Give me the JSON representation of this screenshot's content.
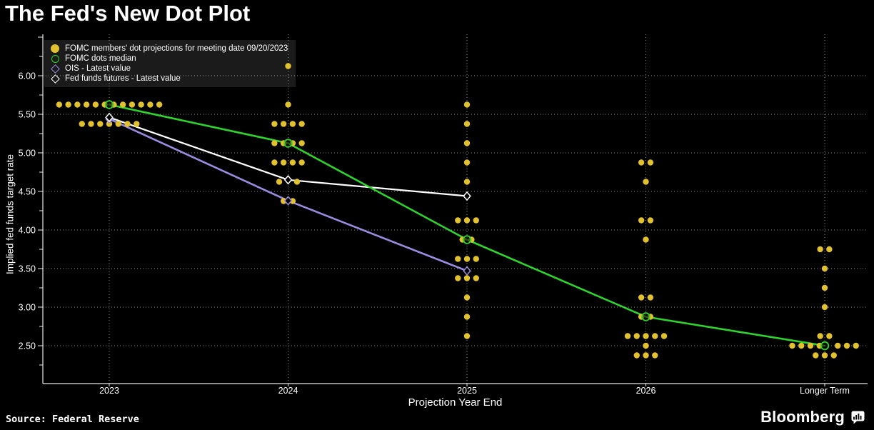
{
  "title": "The Fed's New Dot Plot",
  "source_label": "Source: Federal Reserve",
  "brand": {
    "name": "Bloomberg"
  },
  "chart_data": {
    "type": "scatter",
    "title": "The Fed's New Dot Plot",
    "xlabel": "Projection Year End",
    "ylabel": "Implied fed funds target rate",
    "categories": [
      "2023",
      "2024",
      "2025",
      "2026",
      "Longer Term"
    ],
    "y_axis": {
      "tick_labels": [
        "6.00",
        "5.50",
        "5.00",
        "4.50",
        "4.00",
        "3.50",
        "3.00",
        "2.50"
      ],
      "label_step": 0.5,
      "minor_step": 0.25,
      "label_min": 2.5,
      "label_max": 6.0,
      "grid": "dotted horizontal at 0.5 steps and dotted vertical at each category"
    },
    "colors": {
      "background": "#000000",
      "dots": "#e2c12e",
      "median": "#2ed32e",
      "ois": "#9a8bdf",
      "futures": "#ffffff",
      "legend_bg": "#1b1b1b",
      "axis": "#e8e8e8"
    },
    "legend": [
      {
        "label": "FOMC members' dot projections for meeting date 09/20/2023",
        "marker": "filled-circle",
        "color": "#e2c12e"
      },
      {
        "label": "FOMC dots median",
        "marker": "open-circle",
        "color": "#2ed32e"
      },
      {
        "label": "OIS - Latest value",
        "marker": "open-diamond",
        "color": "#9a8bdf"
      },
      {
        "label": "Fed funds futures - Latest value",
        "marker": "open-diamond",
        "color": "#ffffff"
      }
    ],
    "dot_groups": {
      "2023": [
        {
          "value": 5.625,
          "count": 12
        },
        {
          "value": 5.375,
          "count": 7
        }
      ],
      "2024": [
        {
          "value": 6.125,
          "count": 1
        },
        {
          "value": 5.625,
          "count": 1
        },
        {
          "value": 5.375,
          "count": 4
        },
        {
          "value": 5.125,
          "count": 4
        },
        {
          "value": 4.875,
          "count": 4
        },
        {
          "value": 4.625,
          "count": 2,
          "offsets": [
            -12.5,
            12.5
          ]
        },
        {
          "value": 4.375,
          "count": 2
        }
      ],
      "2025": [
        {
          "value": 5.625,
          "count": 1
        },
        {
          "value": 5.375,
          "count": 1
        },
        {
          "value": 5.125,
          "count": 1
        },
        {
          "value": 4.875,
          "count": 1
        },
        {
          "value": 4.625,
          "count": 1
        },
        {
          "value": 4.125,
          "count": 3
        },
        {
          "value": 3.875,
          "count": 2
        },
        {
          "value": 3.625,
          "count": 3
        },
        {
          "value": 3.375,
          "count": 3
        },
        {
          "value": 3.125,
          "count": 1
        },
        {
          "value": 2.875,
          "count": 1
        },
        {
          "value": 2.625,
          "count": 1
        }
      ],
      "2026": [
        {
          "value": 4.875,
          "count": 2
        },
        {
          "value": 4.625,
          "count": 1
        },
        {
          "value": 4.125,
          "count": 2
        },
        {
          "value": 3.875,
          "count": 1
        },
        {
          "value": 3.125,
          "count": 2
        },
        {
          "value": 2.875,
          "count": 2
        },
        {
          "value": 2.625,
          "count": 5
        },
        {
          "value": 2.5,
          "count": 1
        },
        {
          "value": 2.375,
          "count": 3
        }
      ],
      "Longer Term": [
        {
          "value": 3.75,
          "count": 2
        },
        {
          "value": 3.5,
          "count": 1
        },
        {
          "value": 3.25,
          "count": 1
        },
        {
          "value": 3.0,
          "count": 1
        },
        {
          "value": 2.625,
          "count": 2
        },
        {
          "value": 2.5,
          "count": 7,
          "offsets": [
            -45.5,
            -32.75,
            -20,
            -7.25,
            18.25,
            31,
            43.75
          ]
        },
        {
          "value": 2.375,
          "count": 3
        }
      ]
    },
    "series": [
      {
        "name": "OIS - Latest value",
        "color_key": "ois",
        "marker": "open-diamond",
        "points": [
          [
            "2023",
            5.44
          ],
          [
            "2024",
            4.38
          ],
          [
            "2025",
            3.47
          ]
        ]
      },
      {
        "name": "Fed funds futures - Latest value",
        "color_key": "futures",
        "marker": "open-diamond",
        "points": [
          [
            "2023",
            5.46
          ],
          [
            "2024",
            4.65
          ],
          [
            "2025",
            4.44
          ]
        ]
      },
      {
        "name": "FOMC dots median",
        "color_key": "median",
        "marker": "open-circle",
        "points": [
          [
            "2023",
            5.625
          ],
          [
            "2024",
            5.125
          ],
          [
            "2025",
            3.875
          ],
          [
            "2026",
            2.875
          ],
          [
            "Longer Term",
            2.5
          ]
        ]
      }
    ]
  }
}
